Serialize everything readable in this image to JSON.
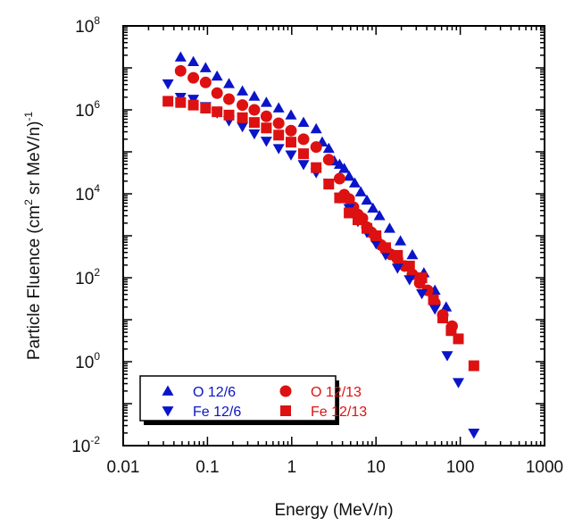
{
  "chart_data": {
    "type": "scatter",
    "title": "",
    "xlabel": "Energy (MeV/n)",
    "ylabel": "Particle Fluence (cm² sr MeV/n)⁻¹",
    "ylabel_parts": {
      "main": "Particle Fluence (cm",
      "sup1": "2",
      "mid": " sr MeV/n)",
      "sup2": "-1"
    },
    "xscale": "log",
    "yscale": "log",
    "xlim": [
      0.01,
      1000
    ],
    "ylim": [
      0.01,
      100000000
    ],
    "x_ticks": [
      {
        "value": 0.01,
        "label": "0.01"
      },
      {
        "value": 0.1,
        "label": "0.1"
      },
      {
        "value": 1,
        "label": "1"
      },
      {
        "value": 10,
        "label": "10"
      },
      {
        "value": 100,
        "label": "100"
      },
      {
        "value": 1000,
        "label": "1000"
      }
    ],
    "y_ticks": [
      {
        "value": 0.01,
        "base": "10",
        "exp": "-2"
      },
      {
        "value": 1,
        "base": "10",
        "exp": "0"
      },
      {
        "value": 100,
        "base": "10",
        "exp": "2"
      },
      {
        "value": 10000,
        "base": "10",
        "exp": "4"
      },
      {
        "value": 1000000,
        "base": "10",
        "exp": "6"
      },
      {
        "value": 100000000,
        "base": "10",
        "exp": "8"
      }
    ],
    "grid": false,
    "legend_position": "bottom-left",
    "series": [
      {
        "name": "O 12/6",
        "marker": "triangle-up",
        "color": "#0a14c8",
        "x": [
          0.048,
          0.068,
          0.095,
          0.13,
          0.18,
          0.26,
          0.36,
          0.5,
          0.7,
          0.98,
          1.38,
          1.95,
          2.3,
          2.75,
          3.2,
          3.7,
          4.2,
          4.8,
          5.6,
          6.6,
          7.8,
          9.2,
          11,
          14.5,
          19.5,
          27,
          37,
          50,
          68
        ],
        "y": [
          18000000.0,
          14000000.0,
          10000000.0,
          6300000.0,
          4200000.0,
          2800000.0,
          2100000.0,
          1500000.0,
          1100000.0,
          750000.0,
          500000.0,
          350000.0,
          170000.0,
          120000.0,
          60000.0,
          50000.0,
          40000.0,
          26000.0,
          18000.0,
          11000.0,
          7000.0,
          4500.0,
          3000.0,
          1500.0,
          750.0,
          350.0,
          130.0,
          50.0,
          20.0
        ]
      },
      {
        "name": "O 12/13",
        "marker": "circle",
        "color": "#dd1111",
        "x": [
          0.048,
          0.068,
          0.095,
          0.13,
          0.18,
          0.26,
          0.36,
          0.5,
          0.7,
          0.98,
          1.38,
          1.95,
          2.75,
          3.7,
          4.2,
          4.8,
          5.4,
          6.1,
          6.9,
          7.8,
          8.8,
          10,
          11.5,
          13,
          15,
          18,
          22,
          27,
          33,
          41,
          50,
          62,
          80
        ],
        "y": [
          8500000.0,
          5800000.0,
          4500000.0,
          2500000.0,
          1800000.0,
          1300000.0,
          1000000.0,
          700000.0,
          480000.0,
          320000.0,
          200000.0,
          130000.0,
          65000.0,
          23000.0,
          9500.0,
          7500.0,
          4800.0,
          3200.0,
          2600.0,
          1600.0,
          1200.0,
          850.0,
          600.0,
          480.0,
          360.0,
          280.0,
          190.0,
          120.0,
          75.0,
          50.0,
          25.0,
          13.0,
          7.0
        ]
      },
      {
        "name": "Fe 12/6",
        "marker": "triangle-down",
        "color": "#0a14c8",
        "x": [
          0.034,
          0.048,
          0.068,
          0.095,
          0.13,
          0.18,
          0.26,
          0.36,
          0.5,
          0.7,
          0.98,
          1.38,
          1.95,
          2.75,
          3.7,
          4.8,
          6.1,
          7.8,
          10,
          13,
          18,
          25,
          35,
          50,
          70,
          95,
          145
        ],
        "y": [
          4200000.0,
          2000000.0,
          1800000.0,
          1200000.0,
          850000.0,
          550000.0,
          400000.0,
          270000.0,
          180000.0,
          120000.0,
          85000.0,
          50000.0,
          32000.0,
          18000.0,
          8000.0,
          4500.0,
          2200.0,
          1200.0,
          650.0,
          350.0,
          170.0,
          90.0,
          42.0,
          18.0,
          1.4,
          0.32,
          0.02
        ]
      },
      {
        "name": "Fe 12/13",
        "marker": "square",
        "color": "#dd1111",
        "x": [
          0.034,
          0.048,
          0.068,
          0.095,
          0.13,
          0.18,
          0.26,
          0.36,
          0.5,
          0.7,
          0.98,
          1.38,
          1.95,
          2.75,
          3.7,
          4.8,
          6.1,
          7.8,
          10,
          13,
          18,
          25,
          35,
          48,
          62,
          78,
          95,
          145
        ],
        "y": [
          1600000.0,
          1500000.0,
          1300000.0,
          1100000.0,
          900000.0,
          750000.0,
          650000.0,
          500000.0,
          370000.0,
          250000.0,
          170000.0,
          90000.0,
          42000.0,
          17000.0,
          8000.0,
          3500.0,
          2400.0,
          1500.0,
          1000.0,
          520.0,
          340.0,
          190.0,
          100.0,
          30.0,
          11.0,
          5.5,
          3.5,
          0.8
        ]
      }
    ]
  },
  "legend": {
    "items": [
      {
        "label": "O 12/6",
        "marker": "triangle-up",
        "color": "#0a14c8"
      },
      {
        "label": "Fe 12/6",
        "marker": "triangle-down",
        "color": "#0a14c8"
      },
      {
        "label": "O 12/13",
        "marker": "circle",
        "color": "#dd1111"
      },
      {
        "label": "Fe 12/13",
        "marker": "square",
        "color": "#dd1111"
      }
    ]
  }
}
